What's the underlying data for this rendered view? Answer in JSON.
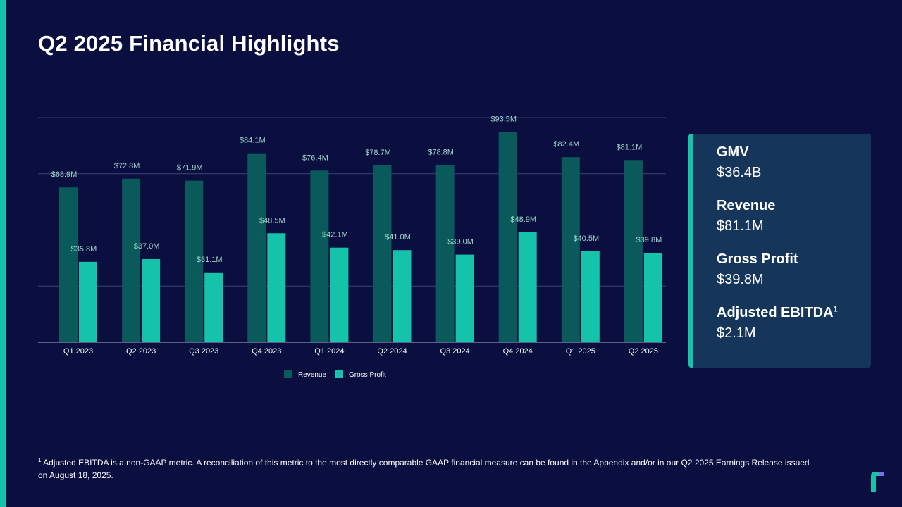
{
  "slide": {
    "title": "Q2 2025 Financial Highlights",
    "footnote_marker": "1",
    "footnote_text": "Adjusted EBITDA is a non-GAAP metric. A reconciliation of this metric to the most directly comparable GAAP financial measure can be found in the Appendix and/or in our Q2 2025 Earnings Release issued on August 18, 2025."
  },
  "colors": {
    "background": "#0b0f3f",
    "accent": "#14c3a9",
    "revenue": "#0a5a5c",
    "gross_profit": "#14c3a9",
    "card": "#16355a",
    "label": "#9fd4cc"
  },
  "icons": {
    "logo": "company-logo-icon"
  },
  "metrics": [
    {
      "label": "GMV",
      "value": "$36.4B",
      "sup": ""
    },
    {
      "label": "Revenue",
      "value": "$81.1M",
      "sup": ""
    },
    {
      "label": "Gross Profit",
      "value": "$39.8M",
      "sup": ""
    },
    {
      "label": "Adjusted EBITDA",
      "value": "$2.1M",
      "sup": "1"
    }
  ],
  "chart_data": {
    "type": "bar",
    "categories": [
      "Q1 2023",
      "Q2 2023",
      "Q3 2023",
      "Q4 2023",
      "Q1 2024",
      "Q2 2024",
      "Q3 2024",
      "Q4 2024",
      "Q1 2025",
      "Q2 2025"
    ],
    "series": [
      {
        "name": "Revenue",
        "values": [
          68.9,
          72.8,
          71.9,
          84.1,
          76.4,
          78.7,
          78.8,
          93.5,
          82.4,
          81.1
        ],
        "labels": [
          "$68.9M",
          "$72.8M",
          "$71.9M",
          "$84.1M",
          "$76.4M",
          "$78.7M",
          "$78.8M",
          "$93.5M",
          "$82.4M",
          "$81.1M"
        ]
      },
      {
        "name": "Gross Profit",
        "values": [
          35.8,
          37.0,
          31.1,
          48.5,
          42.1,
          41.0,
          39.0,
          48.9,
          40.5,
          39.8
        ],
        "labels": [
          "$35.8M",
          "$37.0M",
          "$31.1M",
          "$48.5M",
          "$42.1M",
          "$41.0M",
          "$39.0M",
          "$48.9M",
          "$40.5M",
          "$39.8M"
        ]
      }
    ],
    "ylim": [
      0,
      100
    ],
    "yticks": [
      0,
      25,
      50,
      75,
      100
    ],
    "grid": true,
    "legend": "bottom-center",
    "xlabel": "",
    "ylabel": ""
  }
}
